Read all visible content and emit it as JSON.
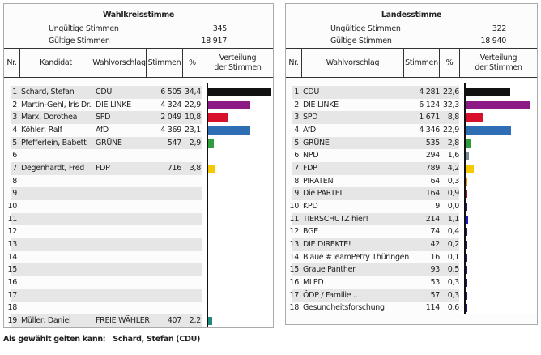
{
  "wahlkreis": {
    "title": "Wahlkreisstimme",
    "invalid_label": "Ungültige Stimmen",
    "invalid_value": "345",
    "valid_label": "Gültige Stimmen",
    "valid_value": "18 917",
    "headers": {
      "nr": "Nr.",
      "candidate": "Kandidat",
      "list": "Wahlvorschlag",
      "votes": "Stimmen",
      "pct": "%",
      "dist_line1": "Verteilung",
      "dist_line2": "der Stimmen"
    },
    "rows": [
      {
        "nr": "1",
        "candidate": "Schard, Stefan",
        "list": "CDU",
        "votes": "6 505",
        "pct": "34,4",
        "share": 34.4,
        "color": "#111111"
      },
      {
        "nr": "2",
        "candidate": "Martin-Gehl, Iris Dr.",
        "list": "DIE LINKE",
        "votes": "4 324",
        "pct": "22,9",
        "share": 22.9,
        "color": "#8b1a85"
      },
      {
        "nr": "3",
        "candidate": "Marx, Dorothea",
        "list": "SPD",
        "votes": "2 049",
        "pct": "10,8",
        "share": 10.8,
        "color": "#d9102b"
      },
      {
        "nr": "4",
        "candidate": "Köhler, Ralf",
        "list": "AfD",
        "votes": "4 369",
        "pct": "23,1",
        "share": 23.1,
        "color": "#2f6db5"
      },
      {
        "nr": "5",
        "candidate": "Pfefferlein, Babett",
        "list": "GRÜNE",
        "votes": "547",
        "pct": "2,9",
        "share": 2.9,
        "color": "#2f9c3e"
      },
      {
        "nr": "6",
        "candidate": "",
        "list": "",
        "votes": "",
        "pct": "",
        "share": 0,
        "color": ""
      },
      {
        "nr": "7",
        "candidate": "Degenhardt, Fred",
        "list": "FDP",
        "votes": "716",
        "pct": "3,8",
        "share": 3.8,
        "color": "#f5c800"
      },
      {
        "nr": "8",
        "candidate": "",
        "list": "",
        "votes": "",
        "pct": "",
        "share": 0,
        "color": ""
      },
      {
        "nr": "9",
        "candidate": "",
        "list": "",
        "votes": "",
        "pct": "",
        "share": 0,
        "color": ""
      },
      {
        "nr": "10",
        "candidate": "",
        "list": "",
        "votes": "",
        "pct": "",
        "share": 0,
        "color": ""
      },
      {
        "nr": "11",
        "candidate": "",
        "list": "",
        "votes": "",
        "pct": "",
        "share": 0,
        "color": ""
      },
      {
        "nr": "12",
        "candidate": "",
        "list": "",
        "votes": "",
        "pct": "",
        "share": 0,
        "color": ""
      },
      {
        "nr": "13",
        "candidate": "",
        "list": "",
        "votes": "",
        "pct": "",
        "share": 0,
        "color": ""
      },
      {
        "nr": "14",
        "candidate": "",
        "list": "",
        "votes": "",
        "pct": "",
        "share": 0,
        "color": ""
      },
      {
        "nr": "15",
        "candidate": "",
        "list": "",
        "votes": "",
        "pct": "",
        "share": 0,
        "color": ""
      },
      {
        "nr": "16",
        "candidate": "",
        "list": "",
        "votes": "",
        "pct": "",
        "share": 0,
        "color": ""
      },
      {
        "nr": "17",
        "candidate": "",
        "list": "",
        "votes": "",
        "pct": "",
        "share": 0,
        "color": ""
      },
      {
        "nr": "18",
        "candidate": "",
        "list": "",
        "votes": "",
        "pct": "",
        "share": 0,
        "color": ""
      },
      {
        "nr": "19",
        "candidate": "Müller, Daniel",
        "list": "FREIE WÄHLER",
        "votes": "407",
        "pct": "2,2",
        "share": 2.2,
        "color": "#1f8a80"
      }
    ]
  },
  "landes": {
    "title": "Landesstimme",
    "invalid_label": "Ungültige Stimmen",
    "invalid_value": "322",
    "valid_label": "Gültige Stimmen",
    "valid_value": "18 940",
    "headers": {
      "nr": "Nr.",
      "list": "Wahlvorschlag",
      "votes": "Stimmen",
      "pct": "%",
      "dist_line1": "Verteilung",
      "dist_line2": "der Stimmen"
    },
    "rows": [
      {
        "nr": "1",
        "list": "CDU",
        "votes": "4 281",
        "pct": "22,6",
        "share": 22.6,
        "color": "#111111"
      },
      {
        "nr": "2",
        "list": "DIE LINKE",
        "votes": "6 124",
        "pct": "32,3",
        "share": 32.3,
        "color": "#8b1a85"
      },
      {
        "nr": "3",
        "list": "SPD",
        "votes": "1 671",
        "pct": "8,8",
        "share": 8.8,
        "color": "#d9102b"
      },
      {
        "nr": "4",
        "list": "AfD",
        "votes": "4 346",
        "pct": "22,9",
        "share": 22.9,
        "color": "#2f6db5"
      },
      {
        "nr": "5",
        "list": "GRÜNE",
        "votes": "535",
        "pct": "2,8",
        "share": 2.8,
        "color": "#2f9c3e"
      },
      {
        "nr": "6",
        "list": "NPD",
        "votes": "294",
        "pct": "1,6",
        "share": 1.6,
        "color": "#7a8a99"
      },
      {
        "nr": "7",
        "list": "FDP",
        "votes": "789",
        "pct": "4,2",
        "share": 4.2,
        "color": "#f5c800"
      },
      {
        "nr": "8",
        "list": "PIRATEN",
        "votes": "64",
        "pct": "0,3",
        "share": 0.3,
        "color": "#f28c00"
      },
      {
        "nr": "9",
        "list": "Die PARTEI",
        "votes": "164",
        "pct": "0,9",
        "share": 0.9,
        "color": "#9b1b30"
      },
      {
        "nr": "10",
        "list": "KPD",
        "votes": "9",
        "pct": "0,0",
        "share": 0.0,
        "color": "#1a1a6e"
      },
      {
        "nr": "11",
        "list": "TIERSCHUTZ hier!",
        "votes": "214",
        "pct": "1,1",
        "share": 1.1,
        "color": "#1a1acc"
      },
      {
        "nr": "12",
        "list": "BGE",
        "votes": "74",
        "pct": "0,4",
        "share": 0.4,
        "color": "#1a1a6e"
      },
      {
        "nr": "13",
        "list": "DIE DIREKTE!",
        "votes": "42",
        "pct": "0,2",
        "share": 0.2,
        "color": "#1a1a6e"
      },
      {
        "nr": "14",
        "list": "Blaue #TeamPetry Thüringen",
        "votes": "16",
        "pct": "0,1",
        "share": 0.1,
        "color": "#1a1a6e"
      },
      {
        "nr": "15",
        "list": "Graue Panther",
        "votes": "93",
        "pct": "0,5",
        "share": 0.5,
        "color": "#1a1a6e"
      },
      {
        "nr": "16",
        "list": "MLPD",
        "votes": "53",
        "pct": "0,3",
        "share": 0.3,
        "color": "#1a1a6e"
      },
      {
        "nr": "17",
        "list": "ÖDP / Familie ..",
        "votes": "57",
        "pct": "0,3",
        "share": 0.3,
        "color": "#1a1a6e"
      },
      {
        "nr": "18",
        "list": "Gesundheitsforschung",
        "votes": "114",
        "pct": "0,6",
        "share": 0.6,
        "color": "#1a1a6e"
      }
    ]
  },
  "footer": {
    "label": "Als gewählt gelten kann:",
    "value": "Schard, Stefan (CDU)"
  }
}
